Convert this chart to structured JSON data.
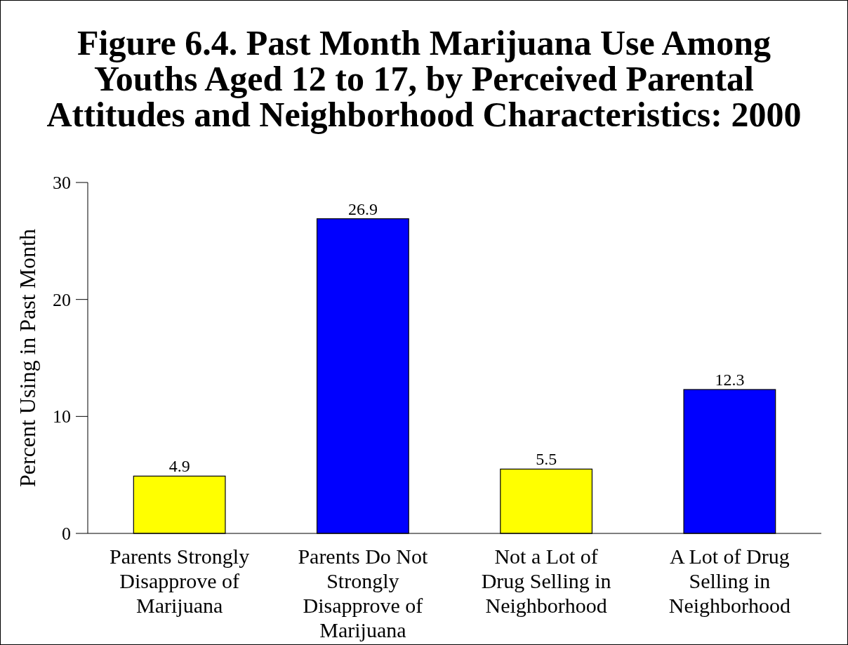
{
  "chart_data": {
    "type": "bar",
    "title": "Figure 6.4.  Past Month Marijuana Use Among\nYouths Aged 12 to 17, by Perceived Parental\nAttitudes and Neighborhood Characteristics: 2000",
    "ylabel": "Percent Using in Past Month",
    "categories": [
      "Parents Strongly\nDisapprove of\nMarijuana",
      "Parents Do Not\nStrongly\nDisapprove of\nMarijuana",
      "Not a Lot of\nDrug Selling in\nNeighborhood",
      "A Lot of Drug\nSelling in\nNeighborhood"
    ],
    "values": [
      4.9,
      26.9,
      5.5,
      12.3
    ],
    "colors": [
      "#ffff00",
      "#0000ff",
      "#ffff00",
      "#0000ff"
    ],
    "ylim": [
      0,
      30
    ],
    "yticks": [
      0,
      10,
      20,
      30
    ],
    "data_labels": true
  }
}
